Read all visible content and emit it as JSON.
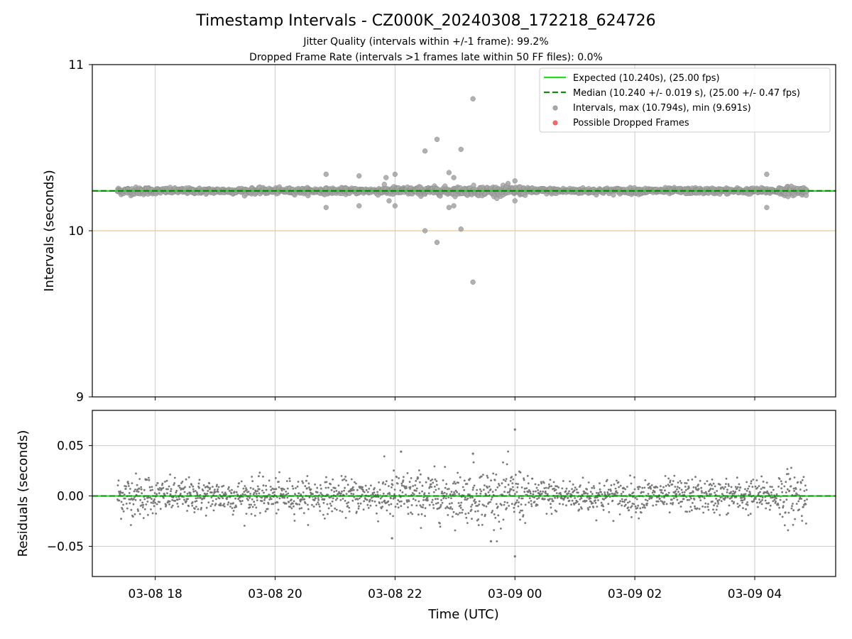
{
  "figure": {
    "title": "Timestamp Intervals - CZ000K_20240308_172218_624726",
    "subtitle_1": "Jitter Quality (intervals within +/-1 frame): 99.2%",
    "subtitle_2": "Dropped Frame Rate (intervals >1 frames late within 50 FF files): 0.0%"
  },
  "chart_data": [
    {
      "type": "scatter",
      "panel": "intervals",
      "ylabel": "Intervals (seconds)",
      "xlabel": "",
      "ylim": [
        9,
        11
      ],
      "yticks": [
        {
          "value": 9,
          "label": "9"
        },
        {
          "value": 10,
          "label": "10"
        },
        {
          "value": 11,
          "label": "11"
        }
      ],
      "grid": true,
      "legend_position": "top-right",
      "expected_interval": 10.24,
      "median_interval": 10.24,
      "reference_line": 10.0,
      "legend": [
        {
          "label": "Expected (10.240s), (25.00 fps)",
          "style": "solid-line",
          "color": "#22dd22"
        },
        {
          "label": "Median (10.240 +/- 0.019 s), (25.00 +/- 0.47 fps)",
          "style": "dashed-line",
          "color": "#118811"
        },
        {
          "label": "Intervals, max (10.794s), min (9.691s)",
          "style": "marker",
          "color": "#a8a8a8"
        },
        {
          "label": "Possible Dropped Frames",
          "style": "marker",
          "color": "#f46a6a"
        }
      ],
      "outliers": [
        {
          "x": 20.85,
          "y": 10.34
        },
        {
          "x": 20.85,
          "y": 10.14
        },
        {
          "x": 21.4,
          "y": 10.33
        },
        {
          "x": 21.4,
          "y": 10.15
        },
        {
          "x": 21.85,
          "y": 10.32
        },
        {
          "x": 21.9,
          "y": 10.18
        },
        {
          "x": 22.0,
          "y": 10.34
        },
        {
          "x": 22.0,
          "y": 10.15
        },
        {
          "x": 22.5,
          "y": 10.48
        },
        {
          "x": 22.5,
          "y": 10.0
        },
        {
          "x": 22.7,
          "y": 10.55
        },
        {
          "x": 22.7,
          "y": 9.93
        },
        {
          "x": 22.9,
          "y": 10.35
        },
        {
          "x": 22.9,
          "y": 10.14
        },
        {
          "x": 22.98,
          "y": 10.32
        },
        {
          "x": 22.98,
          "y": 10.15
        },
        {
          "x": 23.1,
          "y": 10.49
        },
        {
          "x": 23.1,
          "y": 10.01
        },
        {
          "x": 23.3,
          "y": 10.794
        },
        {
          "x": 23.3,
          "y": 9.691
        },
        {
          "x": 24.0,
          "y": 10.3
        },
        {
          "x": 24.0,
          "y": 10.18
        },
        {
          "x": 28.2,
          "y": 10.34
        },
        {
          "x": 28.2,
          "y": 10.14
        }
      ]
    },
    {
      "type": "scatter",
      "panel": "residuals",
      "ylabel": "Residuals (seconds)",
      "xlabel": "Time (UTC)",
      "ylim": [
        -0.08,
        0.085
      ],
      "yticks": [
        {
          "value": 0.05,
          "label": "0.05"
        },
        {
          "value": 0.0,
          "label": "0.00"
        },
        {
          "value": -0.05,
          "label": "−0.05"
        }
      ],
      "grid": true,
      "x_range_hours": [
        17.37,
        28.87
      ],
      "max_residual": 0.066,
      "min_residual": -0.06,
      "outliers": [
        {
          "x": 24.0,
          "y": 0.066
        },
        {
          "x": 24.0,
          "y": -0.06
        },
        {
          "x": 22.1,
          "y": 0.044
        },
        {
          "x": 21.95,
          "y": -0.042
        },
        {
          "x": 23.3,
          "y": 0.042
        },
        {
          "x": 23.6,
          "y": -0.045
        }
      ]
    }
  ],
  "x_axis": {
    "xlim_hours": [
      16.95,
      29.35
    ],
    "ticks": [
      {
        "hours": 18,
        "label": "03-08 18"
      },
      {
        "hours": 20,
        "label": "03-08 20"
      },
      {
        "hours": 22,
        "label": "03-08 22"
      },
      {
        "hours": 24,
        "label": "03-09 00"
      },
      {
        "hours": 26,
        "label": "03-09 02"
      },
      {
        "hours": 28,
        "label": "03-09 04"
      }
    ]
  },
  "colors": {
    "expected": "#22dd22",
    "median": "#118811",
    "intervals": "#a8a8a8",
    "residuals": "#777777",
    "dropped": "#f46a6a",
    "reference": "#e8c88a",
    "grid": "#cccccc"
  }
}
